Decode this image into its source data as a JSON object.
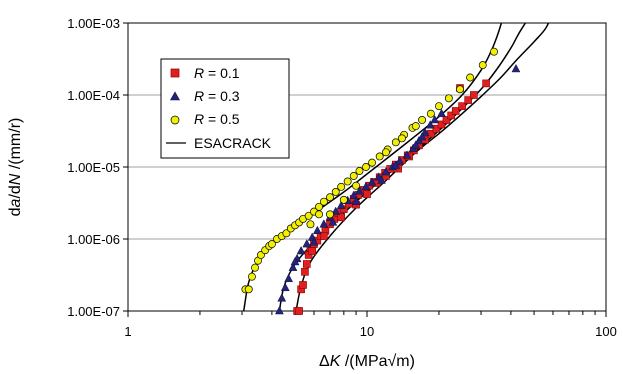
{
  "chart_data": {
    "type": "scatter",
    "x_scale": "log",
    "y_scale": "log",
    "xlim": [
      1,
      100
    ],
    "ylim": [
      1e-07,
      0.001
    ],
    "x_ticks": [
      1,
      10,
      100
    ],
    "x_tick_labels": [
      "1",
      "10",
      "100"
    ],
    "y_ticks": [
      1e-07,
      1e-06,
      1e-05,
      0.0001,
      0.001
    ],
    "y_tick_labels": [
      "1.00E-07",
      "1.00E-06",
      "1.00E-05",
      "1.00E-04",
      "1.00E-03"
    ],
    "grid": "horizontal",
    "legend_position": "upper-left",
    "xlabel": {
      "pre": "Δ",
      "var": "K",
      "post": " /(MPa√m)"
    },
    "ylabel": {
      "p1": "d",
      "v1": "a",
      "p2": "/d",
      "v2": "N",
      "p3": " /(mm/r)"
    },
    "legend": [
      {
        "var": "R",
        "text": " = 0.1"
      },
      {
        "var": "R",
        "text": " = 0.3"
      },
      {
        "var": "R",
        "text": " = 0.5"
      },
      {
        "text": "ESACRACK"
      }
    ],
    "colors": {
      "r01": "#e02020",
      "r03": "#23237a",
      "r05": "#f0f000",
      "curve": "#000000",
      "grid": "#a0a0a0"
    },
    "series": [
      {
        "name": "R = 0.1",
        "marker": "square",
        "points": [
          [
            5.1,
            1e-07
          ],
          [
            5.2,
            1e-07
          ],
          [
            5.3,
            2e-07
          ],
          [
            5.4,
            2.3e-07
          ],
          [
            5.5,
            3.5e-07
          ],
          [
            5.6,
            4.5e-07
          ],
          [
            5.7,
            6e-07
          ],
          [
            5.8,
            7.5e-07
          ],
          [
            6.0,
            8.5e-07
          ],
          [
            6.2,
            9.5e-07
          ],
          [
            6.4,
            1.1e-06
          ],
          [
            6.7,
            1.3e-06
          ],
          [
            7.0,
            1.6e-06
          ],
          [
            7.3,
            1.9e-06
          ],
          [
            7.6,
            2.3e-06
          ],
          [
            8.0,
            2.6e-06
          ],
          [
            8.4,
            3.1e-06
          ],
          [
            8.8,
            3.6e-06
          ],
          [
            9.2,
            4.1e-06
          ],
          [
            9.7,
            4.8e-06
          ],
          [
            10.2,
            5.5e-06
          ],
          [
            10.7,
            6.2e-06
          ],
          [
            11.3,
            7.2e-06
          ],
          [
            11.9,
            8.3e-06
          ],
          [
            12.5,
            9.4e-06
          ],
          [
            13.2,
            1.08e-05
          ],
          [
            14.0,
            1.25e-05
          ],
          [
            14.8,
            1.45e-05
          ],
          [
            15.7,
            1.7e-05
          ],
          [
            16.5,
            2e-05
          ],
          [
            17.5,
            2.4e-05
          ],
          [
            18.5,
            2.9e-05
          ],
          [
            19.5,
            3.4e-05
          ],
          [
            20.5,
            3.9e-05
          ],
          [
            21.5,
            4.5e-05
          ],
          [
            22.5,
            5.2e-05
          ],
          [
            23.5,
            6e-05
          ],
          [
            25.0,
            7e-05
          ],
          [
            26.5,
            8.5e-05
          ],
          [
            28.0,
            0.0001
          ],
          [
            24.5,
            0.000125
          ],
          [
            31.5,
            0.000145
          ],
          [
            9.0,
            3e-06
          ],
          [
            10.0,
            4.2e-06
          ],
          [
            11.0,
            6e-06
          ],
          [
            12.0,
            7.5e-06
          ],
          [
            13.5,
            9.5e-06
          ],
          [
            15.0,
            1.4e-05
          ],
          [
            7.8,
            2e-06
          ],
          [
            6.6,
            1.1e-06
          ],
          [
            5.9,
            6.8e-07
          ]
        ]
      },
      {
        "name": "R = 0.3",
        "marker": "triangle",
        "points": [
          [
            4.3,
            1e-07
          ],
          [
            4.4,
            1.5e-07
          ],
          [
            4.55,
            2.1e-07
          ],
          [
            4.7,
            2.8e-07
          ],
          [
            4.9,
            4e-07
          ],
          [
            5.1,
            5.3e-07
          ],
          [
            5.3,
            6.8e-07
          ],
          [
            5.6,
            8.5e-07
          ],
          [
            5.9,
            1.05e-06
          ],
          [
            6.2,
            1.3e-06
          ],
          [
            6.6,
            1.6e-06
          ],
          [
            7.0,
            2e-06
          ],
          [
            7.4,
            2.4e-06
          ],
          [
            7.8,
            2.9e-06
          ],
          [
            8.3,
            3.4e-06
          ],
          [
            8.8,
            4e-06
          ],
          [
            9.3,
            4.6e-06
          ],
          [
            9.9,
            5.3e-06
          ],
          [
            10.5,
            6.1e-06
          ],
          [
            11.2,
            7.2e-06
          ],
          [
            12.0,
            8.5e-06
          ],
          [
            12.8,
            1e-05
          ],
          [
            13.7,
            1.2e-05
          ],
          [
            14.7,
            1.45e-05
          ],
          [
            15.6,
            1.8e-05
          ],
          [
            16.5,
            2.3e-05
          ],
          [
            17.5,
            3e-05
          ],
          [
            18.4,
            3.8e-05
          ],
          [
            19.2,
            4.5e-05
          ],
          [
            20.5,
            5.5e-05
          ],
          [
            42.0,
            0.00023
          ],
          [
            7.2,
            1.7e-06
          ],
          [
            9.0,
            3.3e-06
          ],
          [
            11.5,
            6.5e-06
          ],
          [
            13.2,
            1.05e-05
          ],
          [
            6.0,
            9e-07
          ],
          [
            5.0,
            4.8e-07
          ],
          [
            16.0,
            2e-05
          ],
          [
            17.0,
            2.6e-05
          ]
        ]
      },
      {
        "name": "R = 0.5",
        "marker": "circle",
        "points": [
          [
            3.1,
            2e-07
          ],
          [
            3.2,
            2e-07
          ],
          [
            3.3,
            3e-07
          ],
          [
            3.4,
            4e-07
          ],
          [
            3.5,
            5e-07
          ],
          [
            3.6,
            6e-07
          ],
          [
            3.75,
            7e-07
          ],
          [
            3.9,
            8e-07
          ],
          [
            4.0,
            8.5e-07
          ],
          [
            4.2,
            1e-06
          ],
          [
            4.4,
            1.1e-06
          ],
          [
            4.6,
            1.2e-06
          ],
          [
            4.8,
            1.4e-06
          ],
          [
            5.0,
            1.55e-06
          ],
          [
            5.2,
            1.7e-06
          ],
          [
            5.4,
            1.9e-06
          ],
          [
            5.7,
            2.1e-06
          ],
          [
            6.0,
            2.4e-06
          ],
          [
            6.3,
            2.8e-06
          ],
          [
            6.6,
            3.3e-06
          ],
          [
            7.0,
            3.8e-06
          ],
          [
            7.4,
            4.5e-06
          ],
          [
            7.8,
            5.3e-06
          ],
          [
            8.3,
            6.3e-06
          ],
          [
            8.8,
            7.5e-06
          ],
          [
            9.3,
            8.8e-06
          ],
          [
            9.9,
            1e-05
          ],
          [
            10.5,
            1.15e-05
          ],
          [
            11.3,
            1.4e-05
          ],
          [
            12.2,
            1.75e-05
          ],
          [
            13.2,
            2.2e-05
          ],
          [
            14.3,
            2.8e-05
          ],
          [
            15.5,
            3.5e-05
          ],
          [
            17.0,
            4.5e-05
          ],
          [
            18.5,
            5.5e-05
          ],
          [
            20.0,
            7e-05
          ],
          [
            22.0,
            9e-05
          ],
          [
            24.5,
            0.00012
          ],
          [
            27.0,
            0.000175
          ],
          [
            30.5,
            0.00026
          ],
          [
            34.0,
            0.0004
          ],
          [
            6.3,
            2.2e-06
          ],
          [
            5.8,
            1.6e-06
          ],
          [
            7.0,
            2.2e-06
          ],
          [
            8.0,
            3.5e-06
          ],
          [
            9.0,
            5.5e-06
          ],
          [
            12.0,
            1.6e-05
          ],
          [
            14.0,
            2.5e-05
          ],
          [
            16.0,
            3.7e-05
          ]
        ]
      }
    ],
    "curves": [
      {
        "name": "ESACRACK",
        "points": [
          [
            3.05,
            1e-07
          ],
          [
            3.2,
            2.5e-07
          ],
          [
            3.5,
            5e-07
          ],
          [
            4.0,
            8.5e-07
          ],
          [
            5,
            1.5e-06
          ],
          [
            6,
            2.3e-06
          ],
          [
            8,
            4.5e-06
          ],
          [
            10,
            8e-06
          ],
          [
            15,
            2.3e-05
          ],
          [
            20,
            5e-05
          ],
          [
            25,
            0.0001
          ],
          [
            30,
            0.00022
          ],
          [
            33,
            0.0004
          ],
          [
            35,
            0.00065
          ],
          [
            36.5,
            0.001
          ]
        ]
      },
      {
        "name": "ESACRACK",
        "points": [
          [
            4.3,
            1e-07
          ],
          [
            4.5,
            2.2e-07
          ],
          [
            5,
            4.5e-07
          ],
          [
            6,
            9e-07
          ],
          [
            8,
            2.3e-06
          ],
          [
            10,
            4.5e-06
          ],
          [
            15,
            1.4e-05
          ],
          [
            20,
            3.2e-05
          ],
          [
            25,
            6.5e-05
          ],
          [
            30,
            0.00012
          ],
          [
            35,
            0.00023
          ],
          [
            40,
            0.00045
          ],
          [
            43,
            0.0007
          ],
          [
            46,
            0.001
          ]
        ]
      },
      {
        "name": "ESACRACK",
        "points": [
          [
            5.05,
            1e-07
          ],
          [
            5.3,
            2.2e-07
          ],
          [
            5.8,
            4.8e-07
          ],
          [
            7,
            1.1e-06
          ],
          [
            9,
            2.7e-06
          ],
          [
            12,
            6.5e-06
          ],
          [
            16,
            1.6e-05
          ],
          [
            20,
            2.9e-05
          ],
          [
            25,
            5.5e-05
          ],
          [
            30,
            9.5e-05
          ],
          [
            36,
            0.00017
          ],
          [
            42,
            0.0003
          ],
          [
            50,
            0.00055
          ],
          [
            56,
            0.00085
          ],
          [
            60,
            0.0014
          ]
        ]
      }
    ]
  }
}
